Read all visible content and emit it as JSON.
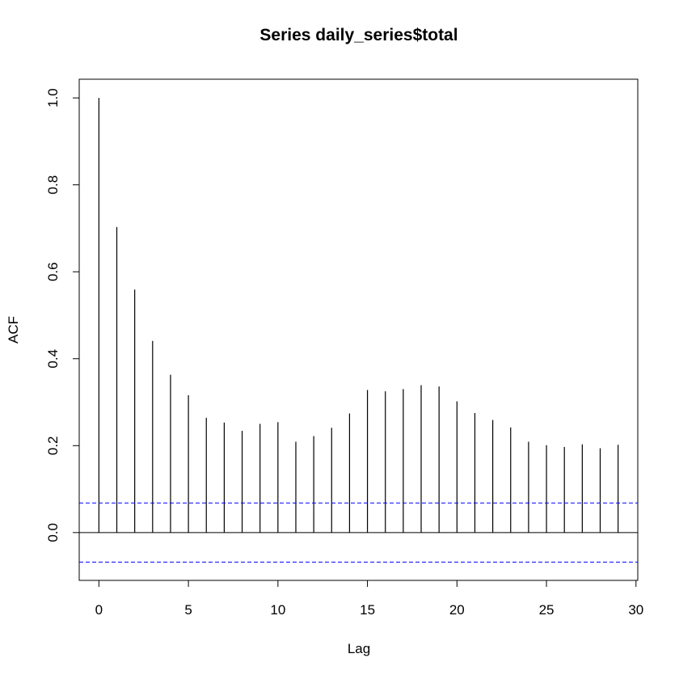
{
  "chart_data": {
    "type": "bar",
    "title": "Series  daily_series$total",
    "xlabel": "Lag",
    "ylabel": "ACF",
    "lags": [
      0,
      1,
      2,
      3,
      4,
      5,
      6,
      7,
      8,
      9,
      10,
      11,
      12,
      13,
      14,
      15,
      16,
      17,
      18,
      19,
      20,
      21,
      22,
      23,
      24,
      25,
      26,
      27,
      28,
      29
    ],
    "acf": [
      1.0,
      0.703,
      0.559,
      0.441,
      0.363,
      0.316,
      0.264,
      0.253,
      0.234,
      0.25,
      0.254,
      0.209,
      0.222,
      0.241,
      0.274,
      0.328,
      0.325,
      0.33,
      0.339,
      0.336,
      0.302,
      0.275,
      0.259,
      0.242,
      0.209,
      0.201,
      0.197,
      0.203,
      0.194,
      0.202
    ],
    "confidence_bound": 0.068,
    "xlim": [
      -1.1,
      30.1
    ],
    "ylim": [
      -0.11,
      1.043
    ],
    "x_ticks": [
      0,
      5,
      10,
      15,
      20,
      25,
      30
    ],
    "x_tick_labels": [
      "0",
      "5",
      "10",
      "15",
      "20",
      "25",
      "30"
    ],
    "y_ticks": [
      0.0,
      0.2,
      0.4,
      0.6,
      0.8,
      1.0
    ],
    "y_tick_labels": [
      "0.0",
      "0.2",
      "0.4",
      "0.6",
      "0.8",
      "1.0"
    ],
    "colors": {
      "bars": "#000000",
      "confidence_lines": "#0000ff",
      "zero_line": "#000000"
    }
  }
}
